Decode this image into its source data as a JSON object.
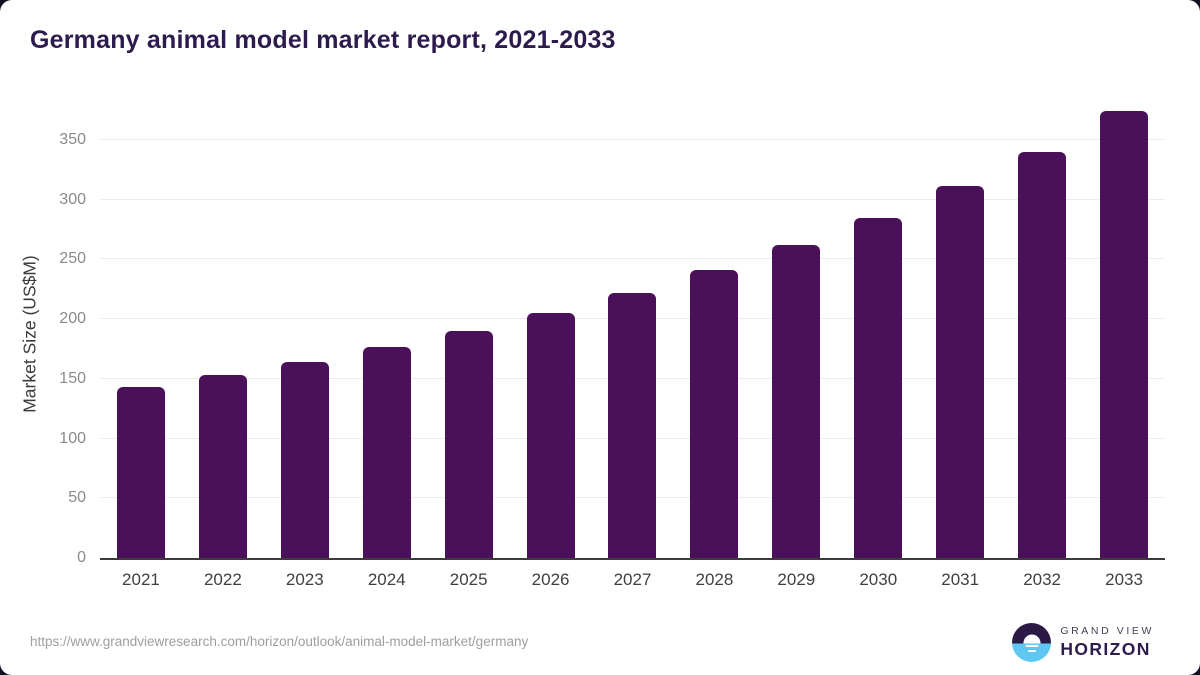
{
  "title": "Germany animal model market report, 2021-2033",
  "chart_data": {
    "type": "bar",
    "categories": [
      "2021",
      "2022",
      "2023",
      "2024",
      "2025",
      "2026",
      "2027",
      "2028",
      "2029",
      "2030",
      "2031",
      "2032",
      "2033"
    ],
    "values": [
      143,
      153,
      164,
      177,
      190,
      205,
      222,
      241,
      262,
      285,
      311,
      340,
      374
    ],
    "title": "Germany animal model market report, 2021-2033",
    "xlabel": "",
    "ylabel": "Market Size (US$M)",
    "ylim": [
      0,
      375
    ],
    "yticks": [
      0,
      50,
      100,
      150,
      200,
      250,
      300,
      350
    ],
    "grid": true,
    "legend": "none",
    "bar_color": "#4a1059"
  },
  "colors": {
    "title_text": "#2e1b4d",
    "bar": "#4a1059",
    "axis_line": "#3c3c3c",
    "ytick_label": "#8a8a8a",
    "xtick_label": "#3f3f3f",
    "gridline": "#ececec",
    "url_text": "#9e9e9e",
    "logo_dark": "#2b1b44",
    "logo_blue": "#5ec8f2"
  },
  "footer": {
    "source_url": "https://www.grandviewresearch.com/horizon/outlook/animal-model-market/germany",
    "logo": {
      "icon": "horizon-sunrise-icon",
      "line1": "GRAND VIEW",
      "line2": "HORIZON"
    }
  }
}
